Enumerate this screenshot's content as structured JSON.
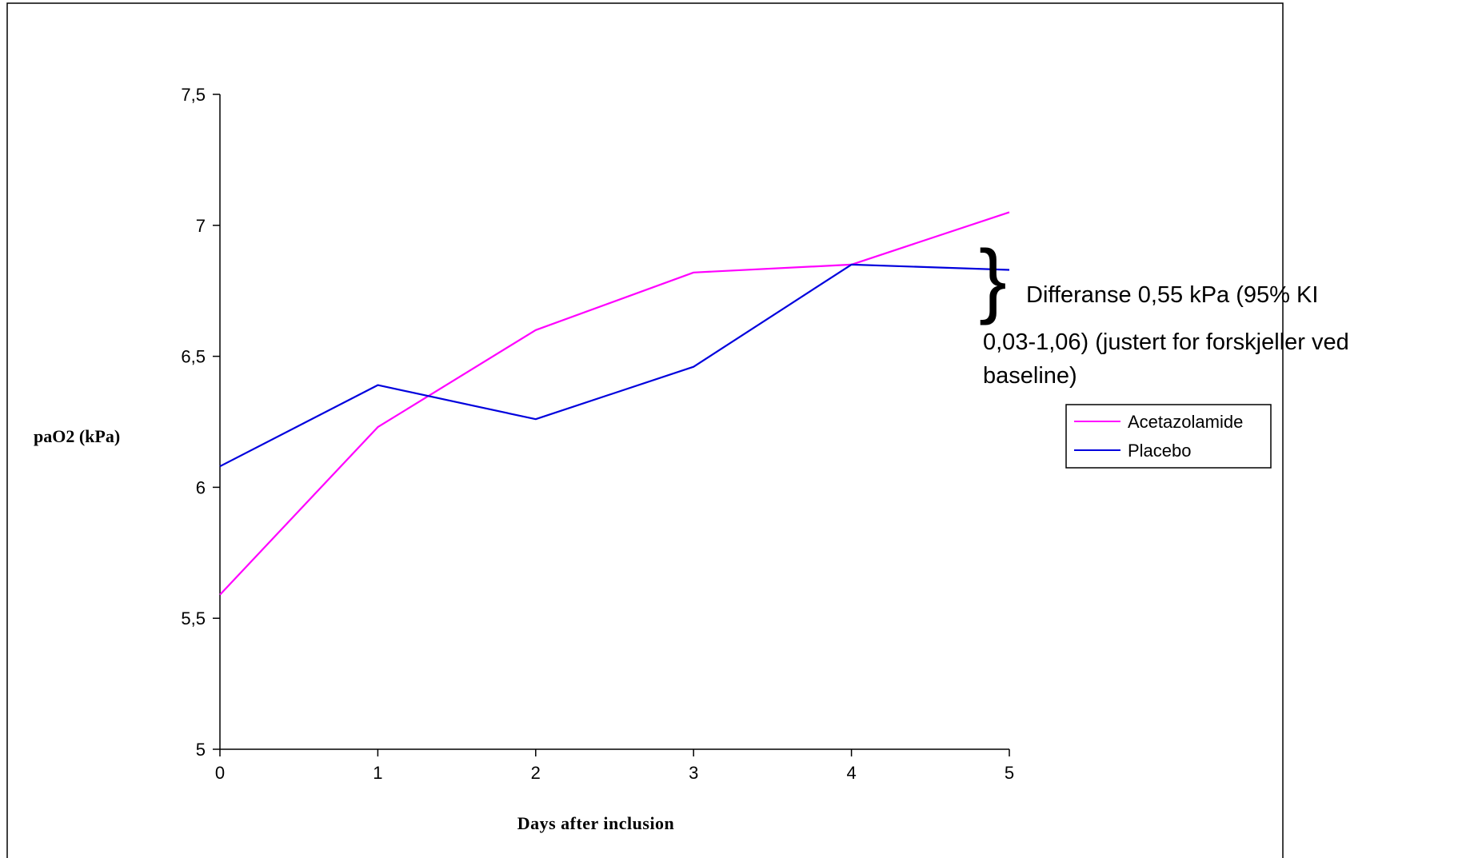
{
  "chart_data": {
    "type": "line",
    "title": "",
    "xlabel": "Days after inclusion",
    "ylabel": "paO2 (kPa)",
    "x": [
      0,
      1,
      2,
      3,
      4,
      5
    ],
    "x_tick_labels": [
      "0",
      "1",
      "2",
      "3",
      "4",
      "5"
    ],
    "xlim": [
      0,
      5
    ],
    "ylim": [
      5,
      7.5
    ],
    "y_ticks": [
      5,
      5.5,
      6,
      6.5,
      7,
      7.5
    ],
    "y_tick_labels": [
      "5",
      "5,5",
      "6",
      "6,5",
      "7",
      "7,5"
    ],
    "grid": false,
    "legend_position": "right",
    "series": [
      {
        "name": "Acetazolamide",
        "color": "#ff00ff",
        "values": [
          5.59,
          6.23,
          6.6,
          6.82,
          6.85,
          7.05
        ]
      },
      {
        "name": "Placebo",
        "color": "#0000dd",
        "values": [
          6.08,
          6.39,
          6.26,
          6.46,
          6.85,
          6.83
        ]
      }
    ],
    "annotation": {
      "brace": "}",
      "lines": [
        "Differanse 0,55 kPa (95% KI",
        "0,03-1,06) (justert for forskjeller ved",
        "baseline)"
      ]
    }
  }
}
